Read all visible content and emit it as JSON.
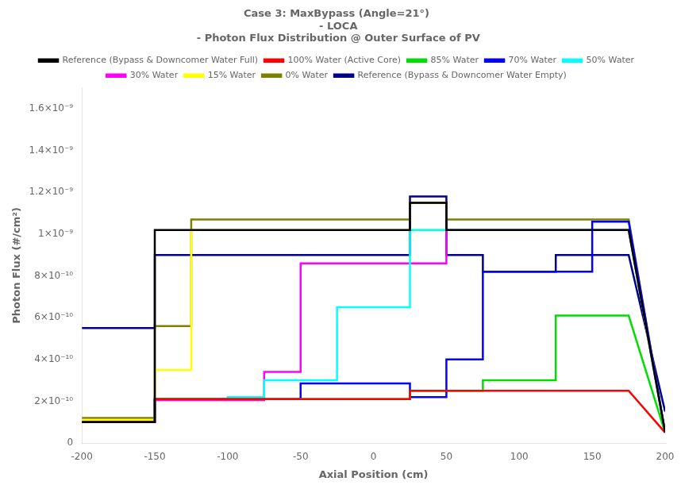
{
  "chart_data": {
    "type": "step",
    "title": "Case 3: MaxBypass (Angle=21°)\n - LOCA\n - Photon Flux Distribution @ Outer Surface of PV",
    "x_label": "Axial Position (cm)",
    "y_label": "Photon Flux (#/cm²)",
    "xlim": [
      -200,
      200
    ],
    "ylim": [
      0,
      1.7e-09
    ],
    "xticks": [
      -200,
      -150,
      -100,
      -50,
      0,
      50,
      100,
      150,
      200
    ],
    "yticks": [
      0,
      {
        "value": 2e-10,
        "label": "2×10⁻¹⁰"
      },
      {
        "value": 4e-10,
        "label": "4×10⁻¹⁰"
      },
      {
        "value": 6e-10,
        "label": "6×10⁻¹⁰"
      },
      {
        "value": 8e-10,
        "label": "8×10⁻¹⁰"
      },
      {
        "value": 1e-09,
        "label": "1×10⁻⁹"
      },
      {
        "value": 1.2e-09,
        "label": "1.2×10⁻⁹"
      },
      {
        "value": 1.4e-09,
        "label": "1.4×10⁻⁹"
      },
      {
        "value": 1.6e-09,
        "label": "1.6×10⁻⁹"
      }
    ],
    "grid": false,
    "legend": "top",
    "bins": [
      -200,
      -175,
      -150,
      -125,
      -100,
      -75,
      -50,
      -25,
      0,
      25,
      50,
      75,
      100,
      125,
      150,
      175,
      200
    ],
    "series": [
      {
        "name": "Reference (Bypass & Downcomer Water Full)",
        "color": "#000000",
        "values": [
          1e-10,
          1e-10,
          1.02e-09,
          1.02e-09,
          1.02e-09,
          1.02e-09,
          1.02e-09,
          1.02e-09,
          1.02e-09,
          1.15e-09,
          1.02e-09,
          1.02e-09,
          1.02e-09,
          1.02e-09,
          1.02e-09,
          5e-11
        ]
      },
      {
        "name": "100% Water (Active Core)",
        "color": "#ff0000",
        "values": [
          1e-10,
          1e-10,
          2.1e-10,
          2.1e-10,
          2.1e-10,
          2.1e-10,
          2.1e-10,
          2.1e-10,
          2.1e-10,
          2.5e-10,
          2.5e-10,
          2.5e-10,
          2.5e-10,
          2.5e-10,
          2.5e-10,
          5e-11
        ]
      },
      {
        "name": "85% Water",
        "color": "#00dd00",
        "values": [
          1e-10,
          1e-10,
          2.1e-10,
          2.1e-10,
          2.1e-10,
          2.1e-10,
          2.1e-10,
          2.1e-10,
          2.1e-10,
          2.5e-10,
          2.5e-10,
          3e-10,
          3e-10,
          6.1e-10,
          6.1e-10,
          5e-11
        ]
      },
      {
        "name": "70% Water",
        "color": "#0000ff",
        "values": [
          1e-10,
          1e-10,
          2.1e-10,
          2.1e-10,
          2.1e-10,
          2.1e-10,
          2.85e-10,
          2.85e-10,
          2.85e-10,
          2.2e-10,
          4e-10,
          8.2e-10,
          8.2e-10,
          8.2e-10,
          1.06e-09,
          5e-11
        ]
      },
      {
        "name": "50% Water",
        "color": "#00ffff",
        "values": [
          1e-10,
          1e-10,
          2.1e-10,
          2.1e-10,
          2.2e-10,
          3e-10,
          3e-10,
          6.5e-10,
          6.5e-10,
          1.02e-09,
          1.02e-09,
          1.02e-09,
          1.02e-09,
          1.02e-09,
          1.02e-09,
          5e-11
        ]
      },
      {
        "name": "30% Water",
        "color": "#ff00ff",
        "values": [
          1e-10,
          1e-10,
          2.05e-10,
          2.05e-10,
          2.05e-10,
          3.4e-10,
          8.6e-10,
          8.6e-10,
          8.6e-10,
          8.6e-10,
          1.02e-09,
          1.02e-09,
          1.02e-09,
          1.02e-09,
          1.02e-09,
          5e-11
        ]
      },
      {
        "name": "15% Water",
        "color": "#ffff00",
        "values": [
          1.1e-10,
          1.1e-10,
          3.5e-10,
          1.02e-09,
          1.02e-09,
          1.02e-09,
          1.02e-09,
          1.02e-09,
          1.02e-09,
          1.02e-09,
          1.02e-09,
          1.02e-09,
          1.02e-09,
          1.02e-09,
          1.02e-09,
          5e-11
        ]
      },
      {
        "name": "0% Water",
        "color": "#808000",
        "values": [
          1.2e-10,
          1.2e-10,
          5.6e-10,
          1.07e-09,
          1.07e-09,
          1.07e-09,
          1.07e-09,
          1.07e-09,
          1.07e-09,
          1.15e-09,
          1.07e-09,
          1.07e-09,
          1.07e-09,
          1.07e-09,
          1.07e-09,
          5e-11
        ]
      },
      {
        "name": "Reference (Bypass & Downcomer Water Empty)",
        "color": "#00008b",
        "values": [
          5.5e-10,
          5.5e-10,
          9e-10,
          9e-10,
          9e-10,
          9e-10,
          9e-10,
          9e-10,
          9e-10,
          1.18e-09,
          9e-10,
          8.2e-10,
          8.2e-10,
          9e-10,
          9e-10,
          1.5e-10
        ]
      }
    ]
  }
}
